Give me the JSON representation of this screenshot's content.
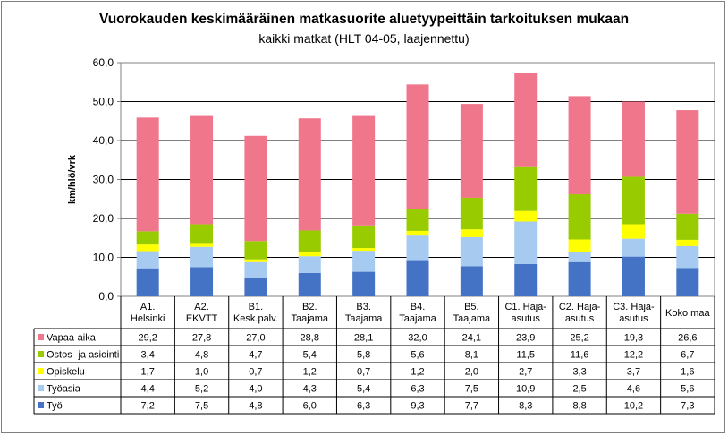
{
  "chart_data": {
    "type": "bar",
    "stacked": true,
    "title": "Vuorokauden keskimääräinen matkasuorite aluetyypeittäin tarkoituksen mukaan",
    "subtitle": "kaikki matkat (HLT 04-05, laajennettu)",
    "ylabel": "km/hlö/vrk",
    "xlabel": "",
    "ylim": [
      0,
      60
    ],
    "yticks": [
      "0,0",
      "10,0",
      "20,0",
      "30,0",
      "40,0",
      "50,0",
      "60,0"
    ],
    "grid": true,
    "categories": [
      [
        "A1.",
        "Helsinki"
      ],
      [
        "A2.",
        "EKVTT"
      ],
      [
        "B1.",
        "Kesk.palv."
      ],
      [
        "B2.",
        "Taajama"
      ],
      [
        "B3.",
        "Taajama"
      ],
      [
        "B4.",
        "Taajama"
      ],
      [
        "B5.",
        "Taajama"
      ],
      [
        "C1. Haja-",
        "asutus"
      ],
      [
        "C2. Haja-",
        "asutus"
      ],
      [
        "C3. Haja-",
        "asutus"
      ],
      [
        "Koko maa"
      ]
    ],
    "series": [
      {
        "name": "Työ",
        "color": "#4472c4",
        "values": [
          7.2,
          7.5,
          4.8,
          6.0,
          6.3,
          9.3,
          7.7,
          8.3,
          8.8,
          10.2,
          7.3
        ],
        "labels": [
          "7,2",
          "7,5",
          "4,8",
          "6,0",
          "6,3",
          "9,3",
          "7,7",
          "8,3",
          "8,8",
          "10,2",
          "7,3"
        ]
      },
      {
        "name": "Työasia",
        "color": "#a6caf0",
        "values": [
          4.4,
          5.2,
          4.0,
          4.3,
          5.4,
          6.3,
          7.5,
          10.9,
          2.5,
          4.6,
          5.6
        ],
        "labels": [
          "4,4",
          "5,2",
          "4,0",
          "4,3",
          "5,4",
          "6,3",
          "7,5",
          "10,9",
          "2,5",
          "4,6",
          "5,6"
        ]
      },
      {
        "name": "Opiskelu",
        "color": "#ffff00",
        "values": [
          1.7,
          1.0,
          0.7,
          1.2,
          0.7,
          1.2,
          2.0,
          2.7,
          3.3,
          3.7,
          1.6
        ],
        "labels": [
          "1,7",
          "1,0",
          "0,7",
          "1,2",
          "0,7",
          "1,2",
          "2,0",
          "2,7",
          "3,3",
          "3,7",
          "1,6"
        ]
      },
      {
        "name": "Ostos- ja asiointi",
        "color": "#99cc00",
        "values": [
          3.4,
          4.8,
          4.7,
          5.4,
          5.8,
          5.6,
          8.1,
          11.5,
          11.6,
          12.2,
          6.7
        ],
        "labels": [
          "3,4",
          "4,8",
          "4,7",
          "5,4",
          "5,8",
          "5,6",
          "8,1",
          "11,5",
          "11,6",
          "12,2",
          "6,7"
        ]
      },
      {
        "name": "Vapaa-aika",
        "color": "#f0768c",
        "values": [
          29.2,
          27.8,
          27.0,
          28.8,
          28.1,
          32.0,
          24.1,
          23.9,
          25.2,
          19.3,
          26.6
        ],
        "labels": [
          "29,2",
          "27,8",
          "27,0",
          "28,8",
          "28,1",
          "32,0",
          "24,1",
          "23,9",
          "25,2",
          "19,3",
          "26,6"
        ]
      }
    ],
    "table_row_order": [
      "Vapaa-aika",
      "Ostos- ja asiointi",
      "Opiskelu",
      "Työasia",
      "Työ"
    ]
  }
}
